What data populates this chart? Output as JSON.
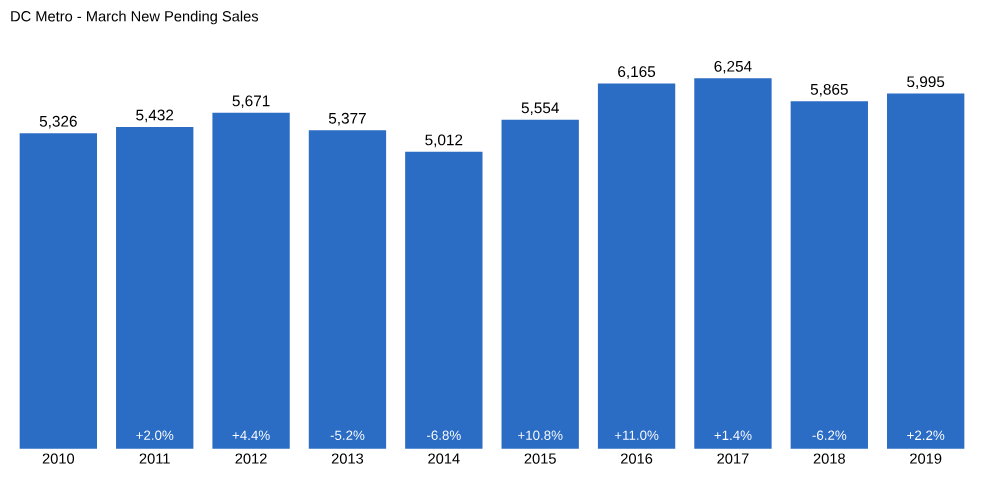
{
  "chart_data": {
    "type": "bar",
    "title": "DC Metro - March New Pending Sales",
    "categories": [
      "2010",
      "2011",
      "2012",
      "2013",
      "2014",
      "2015",
      "2016",
      "2017",
      "2018",
      "2019"
    ],
    "values": [
      5326,
      5432,
      5671,
      5377,
      5012,
      5554,
      6165,
      6254,
      5865,
      5995
    ],
    "value_labels": [
      "5,326",
      "5,432",
      "5,671",
      "5,377",
      "5,012",
      "5,554",
      "6,165",
      "6,254",
      "5,865",
      "5,995"
    ],
    "color": "#2b6cc4",
    "annotations": [
      "+2.0%",
      "+4.4%",
      "-5.2%",
      "-6.8%",
      "+10.8%",
      "+11.0%",
      "+1.4%",
      "-6.2%",
      "+2.2%"
    ]
  }
}
